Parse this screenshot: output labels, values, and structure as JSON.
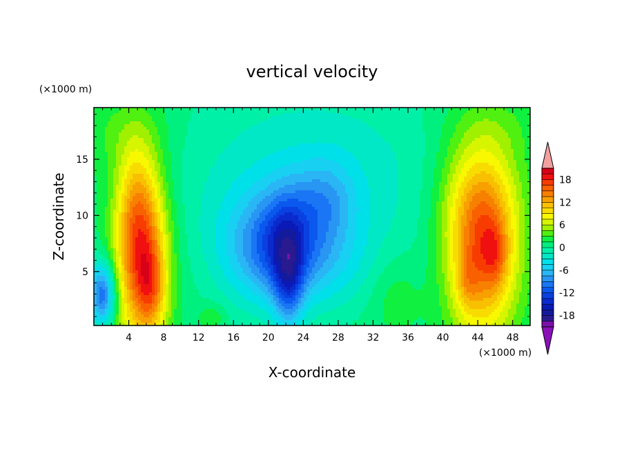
{
  "chart_data": {
    "type": "heatmap",
    "title": "vertical velocity",
    "xlabel": "X-coordinate",
    "ylabel": "Z-coordinate",
    "x_unit": "(×1000 m)",
    "z_unit": "(×1000 m)",
    "xlim": [
      0,
      50
    ],
    "ylim": [
      0.2,
      19.6
    ],
    "x_ticks": [
      4,
      8,
      12,
      16,
      20,
      24,
      28,
      32,
      36,
      40,
      44,
      48
    ],
    "x_tick_labels": [
      "4",
      "8",
      "12",
      "16",
      "20",
      "24",
      "28",
      "32",
      "36",
      "40",
      "44",
      "48"
    ],
    "y_ticks": [
      5,
      10,
      15
    ],
    "y_tick_labels": [
      "5",
      "10",
      "15"
    ],
    "colorbar": {
      "levels": [
        -21,
        -19.5,
        -18,
        -16.5,
        -15,
        -13.5,
        -12,
        -10.5,
        -9,
        -7.5,
        -6,
        -4.5,
        -3,
        -1.5,
        0,
        1.5,
        3,
        4.5,
        6,
        7.5,
        9,
        10.5,
        12,
        13.5,
        15,
        16.5,
        18,
        19.5,
        21
      ],
      "tick_values": [
        -18,
        -12,
        -6,
        0,
        6,
        12,
        18
      ],
      "tick_labels": [
        "-18",
        "-12",
        "-6",
        "0",
        "6",
        "12",
        "18"
      ],
      "colors": [
        "#7a10a8",
        "#2a1a8f",
        "#141a9c",
        "#0a1ab6",
        "#0a2acd",
        "#0a40e0",
        "#0a58ee",
        "#1a76f4",
        "#2896f2",
        "#2ab6f4",
        "#17d0f2",
        "#00e0e8",
        "#00e8c6",
        "#00f0a8",
        "#00f080",
        "#10f040",
        "#50f010",
        "#a0f000",
        "#d8f500",
        "#f8f800",
        "#f8dc00",
        "#f8c000",
        "#f8a000",
        "#f88000",
        "#f86000",
        "#f83c00",
        "#f01010",
        "#d80018"
      ],
      "over_color": "#f2a0a0",
      "under_color": "#8a10b8"
    },
    "features": [
      {
        "x": 5.5,
        "z": 6.0,
        "w": 15.5,
        "sx": 2.1,
        "sz": 5.5
      },
      {
        "x": 4.8,
        "z": 11.5,
        "w": 5.0,
        "sx": 1.7,
        "sz": 4.0
      },
      {
        "x": 6.6,
        "z": 3.5,
        "w": 5.0,
        "sx": 1.1,
        "sz": 2.5
      },
      {
        "x": 44.5,
        "z": 7.0,
        "w": 14.5,
        "sx": 2.8,
        "sz": 5.5
      },
      {
        "x": 46.0,
        "z": 6.5,
        "w": 4.0,
        "sx": 1.0,
        "sz": 2.0
      },
      {
        "x": 42.8,
        "z": 4.0,
        "w": 3.0,
        "sx": 0.9,
        "sz": 1.8
      },
      {
        "x": 44.0,
        "z": 12.0,
        "w": 4.0,
        "sx": 3.5,
        "sz": 4.0
      },
      {
        "x": 1.0,
        "z": 3.0,
        "w": -12.0,
        "sx": 1.1,
        "sz": 2.0
      },
      {
        "x": 20.5,
        "z": 7.0,
        "w": -9.0,
        "sx": 4.0,
        "sz": 3.5
      },
      {
        "x": 22.3,
        "z": 4.0,
        "w": -8.0,
        "sx": 1.2,
        "sz": 3.0
      },
      {
        "x": 22.0,
        "z": 8.5,
        "w": -4.0,
        "sx": 2.0,
        "sz": 3.0
      },
      {
        "x": 26.5,
        "z": 11.5,
        "w": -4.5,
        "sx": 2.5,
        "sz": 2.5
      },
      {
        "x": 27.0,
        "z": 6.0,
        "w": -3.0,
        "sx": 3.5,
        "sz": 3.0
      },
      {
        "x": 25.0,
        "z": 13.0,
        "w": -4.0,
        "sx": 12.0,
        "sz": 7.0
      },
      {
        "x": 3.0,
        "z": 17.5,
        "w": 2.0,
        "sx": 4.0,
        "sz": 2.5
      },
      {
        "x": 46.0,
        "z": 18.0,
        "w": 1.5,
        "sx": 4.0,
        "sz": 2.0
      },
      {
        "x": 34.5,
        "z": 3.0,
        "w": 2.0,
        "sx": 2.0,
        "sz": 2.5
      },
      {
        "x": 13.5,
        "z": 1.0,
        "w": 2.5,
        "sx": 1.0,
        "sz": 0.8
      }
    ],
    "base_w": 1.2
  }
}
